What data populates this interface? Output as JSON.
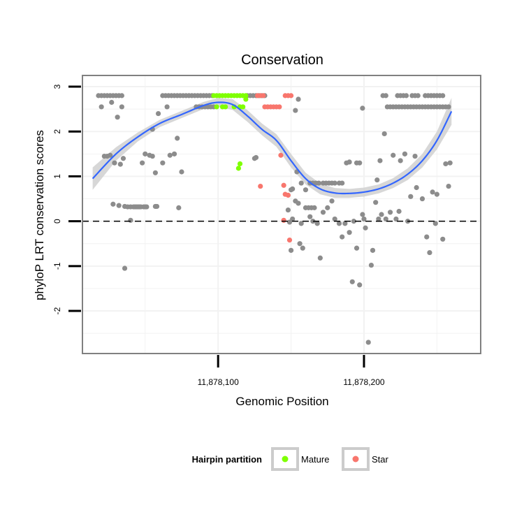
{
  "chart_data": {
    "type": "scatter",
    "title": "Conservation",
    "xlabel": "Genomic Position",
    "ylabel": "phyloP LRT conservation scores",
    "xlim": [
      11878007,
      11878280
    ],
    "ylim": [
      -2.95,
      3.25
    ],
    "x_ticks": [
      {
        "value": 11878100,
        "label": "11,878,100"
      },
      {
        "value": 11878200,
        "label": "11,878,200"
      }
    ],
    "y_ticks": [
      {
        "value": -2,
        "label": "-2"
      },
      {
        "value": -1,
        "label": "-1"
      },
      {
        "value": 0,
        "label": "0"
      },
      {
        "value": 1,
        "label": "1"
      },
      {
        "value": 2,
        "label": "2"
      },
      {
        "value": 3,
        "label": "3"
      }
    ],
    "reference_line": {
      "y": 0,
      "style": "dashed"
    },
    "grid": true,
    "legend": {
      "title": "Hairpin partition",
      "position": "bottom",
      "entries": [
        {
          "name": "Mature",
          "color": "#7fff00"
        },
        {
          "name": "Star",
          "color": "#f8766d"
        }
      ]
    },
    "colors": {
      "other": "#8c8c8c",
      "Mature": "#7fff00",
      "Star": "#f8766d",
      "smooth": "#3366ff",
      "band": "#d0d0d0"
    },
    "series": [
      {
        "name": "Other",
        "points": [
          [
            11878018,
            2.8
          ],
          [
            11878020,
            2.8
          ],
          [
            11878022,
            2.8
          ],
          [
            11878024,
            2.8
          ],
          [
            11878026,
            2.8
          ],
          [
            11878028,
            2.8
          ],
          [
            11878030,
            2.8
          ],
          [
            11878032,
            2.8
          ],
          [
            11878034,
            2.8
          ],
          [
            11878020,
            2.55
          ],
          [
            11878022,
            1.45
          ],
          [
            11878024,
            1.45
          ],
          [
            11878026,
            1.47
          ],
          [
            11878027,
            2.65
          ],
          [
            11878029,
            1.3
          ],
          [
            11878028,
            0.38
          ],
          [
            11878031,
            2.32
          ],
          [
            11878032,
            0.35
          ],
          [
            11878033,
            1.27
          ],
          [
            11878034,
            2.55
          ],
          [
            11878035,
            1.4
          ],
          [
            11878036,
            0.33
          ],
          [
            11878036,
            -1.05
          ],
          [
            11878038,
            0.32
          ],
          [
            11878040,
            0.32
          ],
          [
            11878042,
            0.32
          ],
          [
            11878043,
            0.32
          ],
          [
            11878044,
            0.32
          ],
          [
            11878045,
            0.32
          ],
          [
            11878046,
            0.32
          ],
          [
            11878047,
            0.32
          ],
          [
            11878049,
            0.32
          ],
          [
            11878050,
            0.32
          ],
          [
            11878051,
            0.32
          ],
          [
            11878048,
            1.3
          ],
          [
            11878050,
            1.5
          ],
          [
            11878040,
            0.02
          ],
          [
            11878053,
            1.47
          ],
          [
            11878055,
            2.05
          ],
          [
            11878055,
            1.45
          ],
          [
            11878057,
            1.08
          ],
          [
            11878057,
            0.33
          ],
          [
            11878058,
            0.33
          ],
          [
            11878059,
            2.4
          ],
          [
            11878062,
            1.3
          ],
          [
            11878065,
            2.55
          ],
          [
            11878067,
            1.47
          ],
          [
            11878070,
            1.5
          ],
          [
            11878072,
            1.85
          ],
          [
            11878073,
            0.3
          ],
          [
            11878075,
            1.1
          ],
          [
            11878062,
            2.8
          ],
          [
            11878064,
            2.8
          ],
          [
            11878066,
            2.8
          ],
          [
            11878068,
            2.8
          ],
          [
            11878070,
            2.8
          ],
          [
            11878072,
            2.8
          ],
          [
            11878074,
            2.8
          ],
          [
            11878076,
            2.8
          ],
          [
            11878078,
            2.8
          ],
          [
            11878080,
            2.8
          ],
          [
            11878082,
            2.8
          ],
          [
            11878084,
            2.8
          ],
          [
            11878086,
            2.8
          ],
          [
            11878088,
            2.8
          ],
          [
            11878090,
            2.8
          ],
          [
            11878092,
            2.8
          ],
          [
            11878094,
            2.8
          ],
          [
            11878096,
            2.8
          ],
          [
            11878085,
            2.55
          ],
          [
            11878087,
            2.55
          ],
          [
            11878089,
            2.55
          ],
          [
            11878091,
            2.55
          ],
          [
            11878093,
            2.55
          ],
          [
            11878095,
            2.55
          ],
          [
            11878097,
            2.55
          ],
          [
            11878120,
            2.8
          ],
          [
            11878122,
            2.8
          ],
          [
            11878124,
            2.8
          ],
          [
            11878126,
            2.8
          ],
          [
            11878128,
            2.8
          ],
          [
            11878130,
            2.8
          ],
          [
            11878132,
            2.8
          ],
          [
            11878125,
            1.4
          ],
          [
            11878126,
            1.42
          ],
          [
            11878153,
            2.47
          ],
          [
            11878155,
            2.72
          ],
          [
            11878154,
            1.1
          ],
          [
            11878157,
            0.85
          ],
          [
            11878160,
            0.7
          ],
          [
            11878162,
            0.3
          ],
          [
            11878164,
            0.3
          ],
          [
            11878166,
            0.3
          ],
          [
            11878163,
            0.85
          ],
          [
            11878165,
            0.85
          ],
          [
            11878167,
            0.85
          ],
          [
            11878169,
            0.85
          ],
          [
            11878172,
            0.85
          ],
          [
            11878174,
            0.85
          ],
          [
            11878176,
            0.85
          ],
          [
            11878178,
            0.85
          ],
          [
            11878180,
            0.85
          ],
          [
            11878183,
            0.85
          ],
          [
            11878185,
            0.85
          ],
          [
            11878188,
            1.3
          ],
          [
            11878190,
            1.32
          ],
          [
            11878195,
            1.3
          ],
          [
            11878197,
            1.3
          ],
          [
            11878199,
            2.52
          ],
          [
            11878150,
            0.7
          ],
          [
            11878151,
            0.72
          ],
          [
            11878148,
            0.25
          ],
          [
            11878153,
            0.45
          ],
          [
            11878155,
            0.4
          ],
          [
            11878149,
            -0.02
          ],
          [
            11878151,
            0.05
          ],
          [
            11878150,
            -0.65
          ],
          [
            11878156,
            -0.5
          ],
          [
            11878158,
            -0.6
          ],
          [
            11878157,
            -0.05
          ],
          [
            11878160,
            0.3
          ],
          [
            11878163,
            0.1
          ],
          [
            11878165,
            0.0
          ],
          [
            11878168,
            -0.05
          ],
          [
            11878170,
            -0.82
          ],
          [
            11878172,
            0.2
          ],
          [
            11878175,
            0.3
          ],
          [
            11878178,
            0.45
          ],
          [
            11878180,
            0.05
          ],
          [
            11878183,
            -0.05
          ],
          [
            11878185,
            -0.35
          ],
          [
            11878187,
            -0.05
          ],
          [
            11878190,
            -0.25
          ],
          [
            11878192,
            -1.35
          ],
          [
            11878193,
            0.0
          ],
          [
            11878195,
            -0.6
          ],
          [
            11878197,
            -1.42
          ],
          [
            11878199,
            0.15
          ],
          [
            11878200,
            0.05
          ],
          [
            11878201,
            -0.15
          ],
          [
            11878203,
            -2.7
          ],
          [
            11878205,
            -0.98
          ],
          [
            11878206,
            -0.65
          ],
          [
            11878208,
            0.42
          ],
          [
            11878210,
            0.05
          ],
          [
            11878212,
            0.15
          ],
          [
            11878209,
            0.92
          ],
          [
            11878211,
            1.35
          ],
          [
            11878214,
            1.95
          ],
          [
            11878215,
            0.05
          ],
          [
            11878218,
            0.2
          ],
          [
            11878220,
            1.47
          ],
          [
            11878222,
            0.05
          ],
          [
            11878224,
            0.22
          ],
          [
            11878225,
            1.35
          ],
          [
            11878228,
            1.5
          ],
          [
            11878230,
            0.0
          ],
          [
            11878232,
            0.55
          ],
          [
            11878235,
            1.45
          ],
          [
            11878236,
            0.75
          ],
          [
            11878240,
            0.5
          ],
          [
            11878243,
            -0.35
          ],
          [
            11878245,
            -0.7
          ],
          [
            11878247,
            0.65
          ],
          [
            11878249,
            -0.05
          ],
          [
            11878250,
            0.6
          ],
          [
            11878254,
            -0.4
          ],
          [
            11878256,
            1.28
          ],
          [
            11878258,
            0.78
          ],
          [
            11878259,
            1.3
          ],
          [
            11878213,
            2.8
          ],
          [
            11878215,
            2.8
          ],
          [
            11878223,
            2.8
          ],
          [
            11878225,
            2.8
          ],
          [
            11878227,
            2.8
          ],
          [
            11878229,
            2.8
          ],
          [
            11878233,
            2.8
          ],
          [
            11878235,
            2.8
          ],
          [
            11878237,
            2.8
          ],
          [
            11878242,
            2.8
          ],
          [
            11878244,
            2.8
          ],
          [
            11878246,
            2.8
          ],
          [
            11878248,
            2.8
          ],
          [
            11878250,
            2.8
          ],
          [
            11878252,
            2.8
          ],
          [
            11878254,
            2.8
          ],
          [
            11878216,
            2.55
          ],
          [
            11878218,
            2.55
          ],
          [
            11878220,
            2.55
          ],
          [
            11878222,
            2.55
          ],
          [
            11878224,
            2.55
          ],
          [
            11878226,
            2.55
          ],
          [
            11878228,
            2.55
          ],
          [
            11878230,
            2.55
          ],
          [
            11878232,
            2.55
          ],
          [
            11878234,
            2.55
          ],
          [
            11878236,
            2.55
          ],
          [
            11878238,
            2.55
          ],
          [
            11878240,
            2.55
          ],
          [
            11878242,
            2.55
          ],
          [
            11878244,
            2.55
          ],
          [
            11878246,
            2.55
          ],
          [
            11878248,
            2.55
          ],
          [
            11878250,
            2.55
          ],
          [
            11878252,
            2.55
          ],
          [
            11878254,
            2.55
          ],
          [
            11878256,
            2.55
          ],
          [
            11878258,
            2.55
          ]
        ]
      },
      {
        "name": "Mature",
        "points": [
          [
            11878097,
            2.8
          ],
          [
            11878099,
            2.8
          ],
          [
            11878101,
            2.8
          ],
          [
            11878103,
            2.8
          ],
          [
            11878105,
            2.8
          ],
          [
            11878107,
            2.8
          ],
          [
            11878109,
            2.8
          ],
          [
            11878111,
            2.8
          ],
          [
            11878113,
            2.8
          ],
          [
            11878115,
            2.8
          ],
          [
            11878117,
            2.8
          ],
          [
            11878119,
            2.8
          ],
          [
            11878099,
            2.55
          ],
          [
            11878103,
            2.55
          ],
          [
            11878105,
            2.55
          ],
          [
            11878111,
            2.55
          ],
          [
            11878115,
            2.55
          ],
          [
            11878117,
            2.55
          ],
          [
            11878119,
            2.72
          ],
          [
            11878115,
            1.28
          ],
          [
            11878114,
            1.18
          ]
        ]
      },
      {
        "name": "Star",
        "points": [
          [
            11878127,
            2.8
          ],
          [
            11878129,
            2.8
          ],
          [
            11878131,
            2.8
          ],
          [
            11878146,
            2.8
          ],
          [
            11878148,
            2.8
          ],
          [
            11878150,
            2.8
          ],
          [
            11878132,
            2.55
          ],
          [
            11878134,
            2.55
          ],
          [
            11878136,
            2.55
          ],
          [
            11878138,
            2.55
          ],
          [
            11878140,
            2.55
          ],
          [
            11878142,
            2.55
          ],
          [
            11878143,
            1.47
          ],
          [
            11878129,
            0.78
          ],
          [
            11878145,
            0.8
          ],
          [
            11878146,
            0.6
          ],
          [
            11878148,
            0.58
          ],
          [
            11878145,
            0.02
          ],
          [
            11878149,
            -0.42
          ]
        ]
      }
    ],
    "smooth": [
      [
        11878014,
        0.95
      ],
      [
        11878030,
        1.5
      ],
      [
        11878045,
        1.88
      ],
      [
        11878060,
        2.18
      ],
      [
        11878075,
        2.38
      ],
      [
        11878090,
        2.58
      ],
      [
        11878100,
        2.65
      ],
      [
        11878110,
        2.6
      ],
      [
        11878120,
        2.35
      ],
      [
        11878130,
        2.05
      ],
      [
        11878140,
        1.8
      ],
      [
        11878150,
        1.35
      ],
      [
        11878160,
        0.95
      ],
      [
        11878170,
        0.72
      ],
      [
        11878180,
        0.63
      ],
      [
        11878190,
        0.62
      ],
      [
        11878200,
        0.65
      ],
      [
        11878210,
        0.72
      ],
      [
        11878220,
        0.85
      ],
      [
        11878230,
        1.05
      ],
      [
        11878240,
        1.35
      ],
      [
        11878250,
        1.8
      ],
      [
        11878260,
        2.45
      ]
    ],
    "smooth_band": [
      [
        11878014,
        0.7,
        1.2
      ],
      [
        11878030,
        1.35,
        1.65
      ],
      [
        11878045,
        1.78,
        1.98
      ],
      [
        11878060,
        2.1,
        2.26
      ],
      [
        11878075,
        2.3,
        2.46
      ],
      [
        11878090,
        2.5,
        2.66
      ],
      [
        11878100,
        2.55,
        2.75
      ],
      [
        11878110,
        2.48,
        2.72
      ],
      [
        11878120,
        2.22,
        2.48
      ],
      [
        11878130,
        1.92,
        2.18
      ],
      [
        11878140,
        1.66,
        1.94
      ],
      [
        11878150,
        1.2,
        1.5
      ],
      [
        11878160,
        0.82,
        1.08
      ],
      [
        11878170,
        0.6,
        0.84
      ],
      [
        11878180,
        0.52,
        0.74
      ],
      [
        11878190,
        0.52,
        0.72
      ],
      [
        11878200,
        0.55,
        0.75
      ],
      [
        11878210,
        0.62,
        0.82
      ],
      [
        11878220,
        0.74,
        0.96
      ],
      [
        11878230,
        0.92,
        1.18
      ],
      [
        11878240,
        1.2,
        1.5
      ],
      [
        11878250,
        1.6,
        2.0
      ],
      [
        11878260,
        2.15,
        2.75
      ]
    ]
  }
}
